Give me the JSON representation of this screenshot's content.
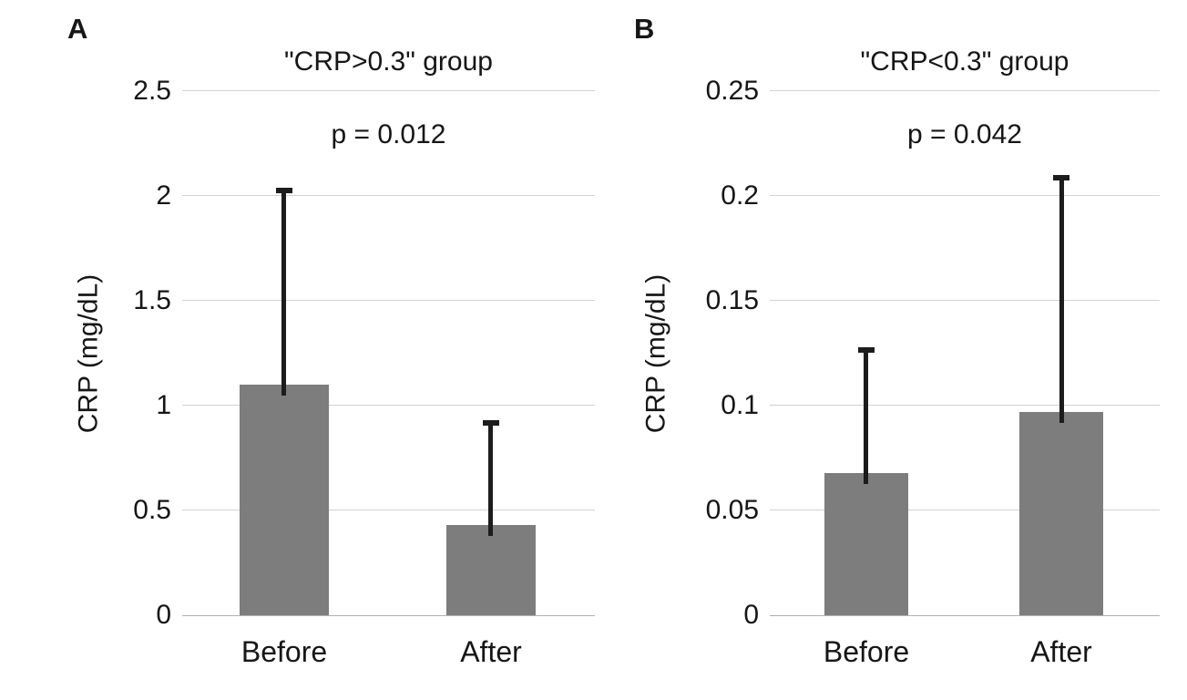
{
  "figure": {
    "background_color": "#ffffff",
    "text_color": "#161616"
  },
  "chart_data": [
    {
      "type": "bar",
      "panel_letter": "A",
      "title": "\"CRP>0.3\" group",
      "p_label": "p = 0.012",
      "ylabel": "CRP (mg/dL)",
      "xlabel": "",
      "categories": [
        "Before",
        "After"
      ],
      "values": [
        1.1,
        0.43
      ],
      "error_bar_top": [
        2.04,
        0.93
      ],
      "ylim": [
        0,
        2.5
      ],
      "yticks": [
        0,
        0.5,
        1,
        1.5,
        2,
        2.5
      ],
      "ytick_labels": [
        "0",
        "0.5",
        "1",
        "1.5",
        "2",
        "2.5"
      ],
      "grid": true,
      "legend": "none",
      "bar_color": "#7d7d7d",
      "error_bar_color": "#1c1c1c",
      "gridline_color": "#d2d2d2",
      "baseline_color": "#b0b0b0"
    },
    {
      "type": "bar",
      "panel_letter": "B",
      "title": "\"CRP<0.3\" group",
      "p_label": "p = 0.042",
      "ylabel": "CRP (mg/dL)",
      "xlabel": "",
      "categories": [
        "Before",
        "After"
      ],
      "values": [
        0.068,
        0.097
      ],
      "error_bar_top": [
        0.128,
        0.21
      ],
      "ylim": [
        0,
        0.25
      ],
      "yticks": [
        0,
        0.05,
        0.1,
        0.15,
        0.2,
        0.25
      ],
      "ytick_labels": [
        "0",
        "0.05",
        "0.1",
        "0.15",
        "0.2",
        "0.25"
      ],
      "grid": true,
      "legend": "none",
      "bar_color": "#7d7d7d",
      "error_bar_color": "#1c1c1c",
      "gridline_color": "#d2d2d2",
      "baseline_color": "#b0b0b0"
    }
  ]
}
